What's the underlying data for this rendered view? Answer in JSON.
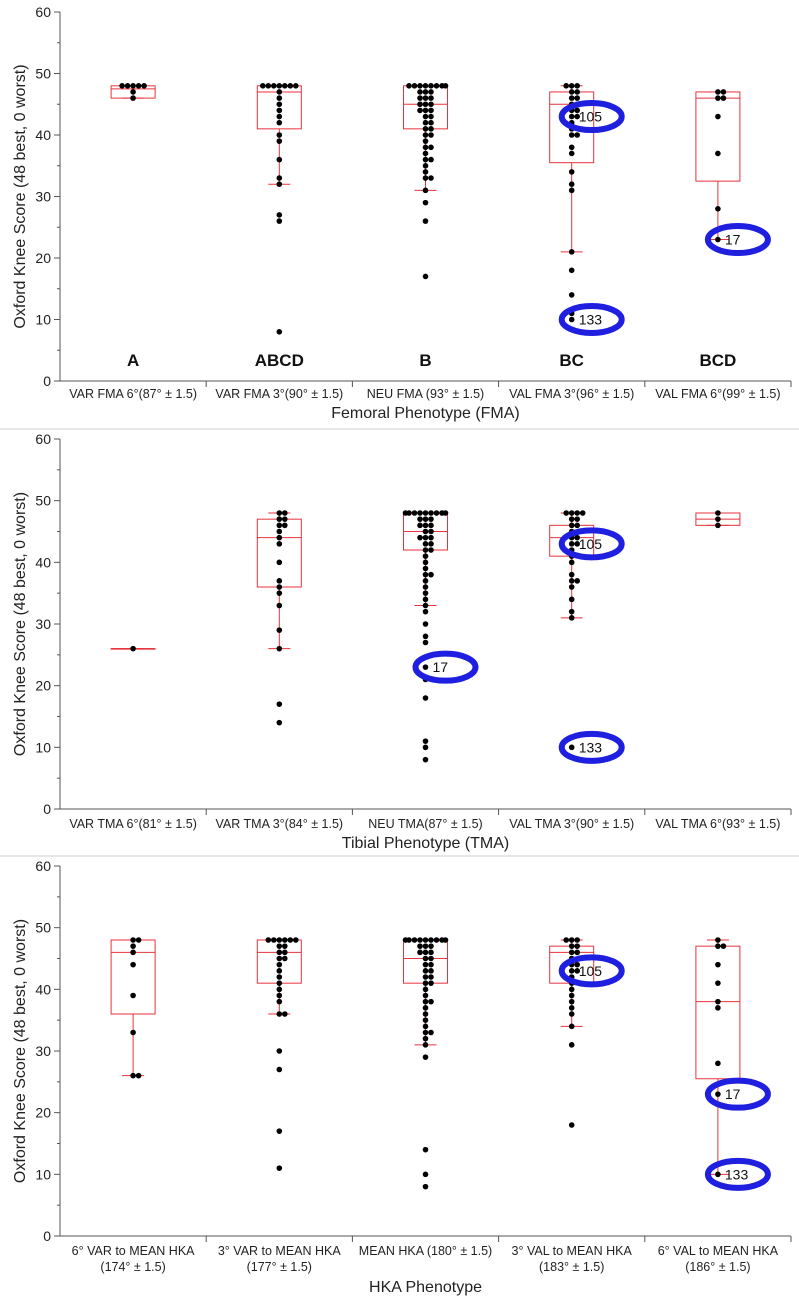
{
  "y_axis_label": "Oxford Knee Score (48 best, 0 worst)",
  "y_ticks": [
    0,
    10,
    20,
    30,
    40,
    50,
    60
  ],
  "colors": {
    "box": "#e8323c",
    "point": "#000000",
    "highlight": "#1f1fe0",
    "axis": "#555555"
  },
  "chart_data": [
    {
      "type": "box",
      "xlabel": "Femoral Phenotype (FMA)",
      "ylabel": "Oxford Knee Score (48 best, 0 worst)",
      "ylim": [
        0,
        60
      ],
      "categories": [
        {
          "label": [
            "VAR FMA 6°(87° ± 1.5)"
          ],
          "group": "A",
          "box": {
            "q1": 46,
            "median": 47.5,
            "q3": 48,
            "low": 46,
            "high": 48
          },
          "points": [
            48,
            48,
            48,
            48,
            48,
            47,
            46
          ]
        },
        {
          "label": [
            "VAR FMA 3°(90° ± 1.5)"
          ],
          "group": "ABCD",
          "box": {
            "q1": 41,
            "median": 47,
            "q3": 48,
            "low": 32,
            "high": 48
          },
          "points": [
            48,
            48,
            48,
            48,
            48,
            48,
            48,
            47,
            46,
            45,
            44,
            43,
            42,
            40,
            39,
            36,
            33,
            32,
            27,
            26,
            8
          ]
        },
        {
          "label": [
            "NEU FMA (93° ± 1.5)"
          ],
          "group": "B",
          "box": {
            "q1": 41,
            "median": 45,
            "q3": 48,
            "low": 31,
            "high": 48
          },
          "points": [
            48,
            48,
            48,
            48,
            48,
            48,
            48,
            48,
            47,
            47,
            47,
            46,
            46,
            46,
            45,
            45,
            45,
            44,
            44,
            44,
            43,
            43,
            42,
            42,
            41,
            41,
            40,
            40,
            39,
            38,
            38,
            37,
            36,
            36,
            35,
            34,
            33,
            33,
            31,
            29,
            26,
            17
          ]
        },
        {
          "label": [
            "VAL FMA 3°(96° ± 1.5)"
          ],
          "group": "BC",
          "box": {
            "q1": 35.5,
            "median": 45,
            "q3": 47,
            "low": 21,
            "high": 48
          },
          "points": [
            48,
            48,
            48,
            47,
            47,
            46,
            46,
            45,
            45,
            44,
            44,
            43,
            43,
            42,
            41,
            40,
            40,
            38,
            37,
            34,
            32,
            31,
            21,
            18,
            14,
            11,
            10
          ],
          "highlights": [
            {
              "value": 43,
              "label": "105"
            },
            {
              "value": 10,
              "label": "133"
            }
          ]
        },
        {
          "label": [
            "VAL FMA 6°(99° ± 1.5)"
          ],
          "group": "BCD",
          "box": {
            "q1": 32.5,
            "median": 46,
            "q3": 47,
            "low": 23,
            "high": 47
          },
          "points": [
            47,
            47,
            46,
            46,
            43,
            37,
            28,
            23
          ],
          "highlights": [
            {
              "value": 23,
              "label": "17"
            }
          ]
        }
      ]
    },
    {
      "type": "box",
      "xlabel": "Tibial Phenotype (TMA)",
      "ylabel": "Oxford Knee Score (48 best, 0 worst)",
      "ylim": [
        0,
        60
      ],
      "categories": [
        {
          "label": [
            "VAR TMA 6°(81° ± 1.5)"
          ],
          "box": {
            "q1": 26,
            "median": 26,
            "q3": 26,
            "low": 26,
            "high": 26
          },
          "points": [
            26
          ]
        },
        {
          "label": [
            "VAR TMA 3°(84° ± 1.5)"
          ],
          "box": {
            "q1": 36,
            "median": 44,
            "q3": 47,
            "low": 26,
            "high": 48
          },
          "points": [
            48,
            48,
            47,
            47,
            46,
            46,
            45,
            44,
            43,
            40,
            37,
            36,
            35,
            33,
            29,
            26,
            17,
            14
          ]
        },
        {
          "label": [
            "NEU TMA(87° ± 1.5)"
          ],
          "box": {
            "q1": 42,
            "median": 45,
            "q3": 48,
            "low": 33,
            "high": 48
          },
          "points": [
            48,
            48,
            48,
            48,
            48,
            48,
            48,
            48,
            48,
            47,
            47,
            47,
            46,
            46,
            46,
            45,
            45,
            44,
            44,
            44,
            43,
            43,
            42,
            42,
            41,
            40,
            39,
            38,
            38,
            37,
            36,
            35,
            34,
            33,
            32,
            30,
            28,
            27,
            23,
            21,
            18,
            11,
            10,
            8
          ],
          "highlights": [
            {
              "value": 23,
              "label": "17"
            }
          ]
        },
        {
          "label": [
            "VAL TMA 3°(90° ± 1.5)"
          ],
          "box": {
            "q1": 41,
            "median": 44,
            "q3": 46,
            "low": 31,
            "high": 48
          },
          "points": [
            48,
            48,
            48,
            48,
            47,
            47,
            46,
            46,
            45,
            44,
            44,
            43,
            43,
            42,
            41,
            40,
            38,
            37,
            37,
            36,
            34,
            32,
            31,
            10
          ],
          "highlights": [
            {
              "value": 43,
              "label": "105"
            },
            {
              "value": 10,
              "label": "133"
            }
          ]
        },
        {
          "label": [
            "VAL TMA 6°(93° ± 1.5)"
          ],
          "box": {
            "q1": 46,
            "median": 47,
            "q3": 48,
            "low": 46,
            "high": 48
          },
          "points": [
            48,
            47,
            46
          ]
        }
      ]
    },
    {
      "type": "box",
      "xlabel": "HKA Phenotype",
      "ylabel": "Oxford Knee Score (48 best, 0 worst)",
      "ylim": [
        0,
        60
      ],
      "categories": [
        {
          "label": [
            "6° VAR to MEAN HKA",
            "(174° ± 1.5)"
          ],
          "box": {
            "q1": 36,
            "median": 46,
            "q3": 48,
            "low": 26,
            "high": 48
          },
          "points": [
            48,
            48,
            47,
            46,
            44,
            39,
            33,
            26,
            26
          ]
        },
        {
          "label": [
            "3° VAR to MEAN HKA",
            "(177° ± 1.5)"
          ],
          "box": {
            "q1": 41,
            "median": 46,
            "q3": 48,
            "low": 36,
            "high": 48
          },
          "points": [
            48,
            48,
            48,
            48,
            48,
            48,
            47,
            47,
            46,
            46,
            45,
            45,
            44,
            43,
            42,
            41,
            40,
            39,
            38,
            36,
            36,
            30,
            27,
            17,
            11
          ]
        },
        {
          "label": [
            "MEAN HKA (180° ± 1.5)"
          ],
          "box": {
            "q1": 41,
            "median": 45,
            "q3": 48,
            "low": 31,
            "high": 48
          },
          "points": [
            48,
            48,
            48,
            48,
            48,
            48,
            48,
            48,
            48,
            47,
            47,
            47,
            46,
            46,
            46,
            45,
            45,
            44,
            44,
            43,
            43,
            42,
            42,
            41,
            41,
            40,
            39,
            38,
            38,
            37,
            36,
            35,
            34,
            33,
            33,
            32,
            31,
            29,
            14,
            10,
            8
          ]
        },
        {
          "label": [
            "3° VAL to MEAN HKA",
            "(183° ± 1.5)"
          ],
          "box": {
            "q1": 41,
            "median": 46,
            "q3": 47,
            "low": 34,
            "high": 48
          },
          "points": [
            48,
            48,
            48,
            47,
            47,
            46,
            46,
            45,
            44,
            44,
            43,
            43,
            42,
            41,
            40,
            39,
            38,
            37,
            36,
            34,
            31,
            18
          ],
          "highlights": [
            {
              "value": 43,
              "label": "105"
            }
          ]
        },
        {
          "label": [
            "6° VAL to MEAN HKA",
            "(186° ± 1.5)"
          ],
          "box": {
            "q1": 25.5,
            "median": 38,
            "q3": 47,
            "low": 10,
            "high": 48
          },
          "points": [
            48,
            47,
            47,
            44,
            41,
            38,
            37,
            28,
            23,
            10
          ],
          "highlights": [
            {
              "value": 23,
              "label": "17"
            },
            {
              "value": 10,
              "label": "133"
            }
          ]
        }
      ]
    }
  ]
}
